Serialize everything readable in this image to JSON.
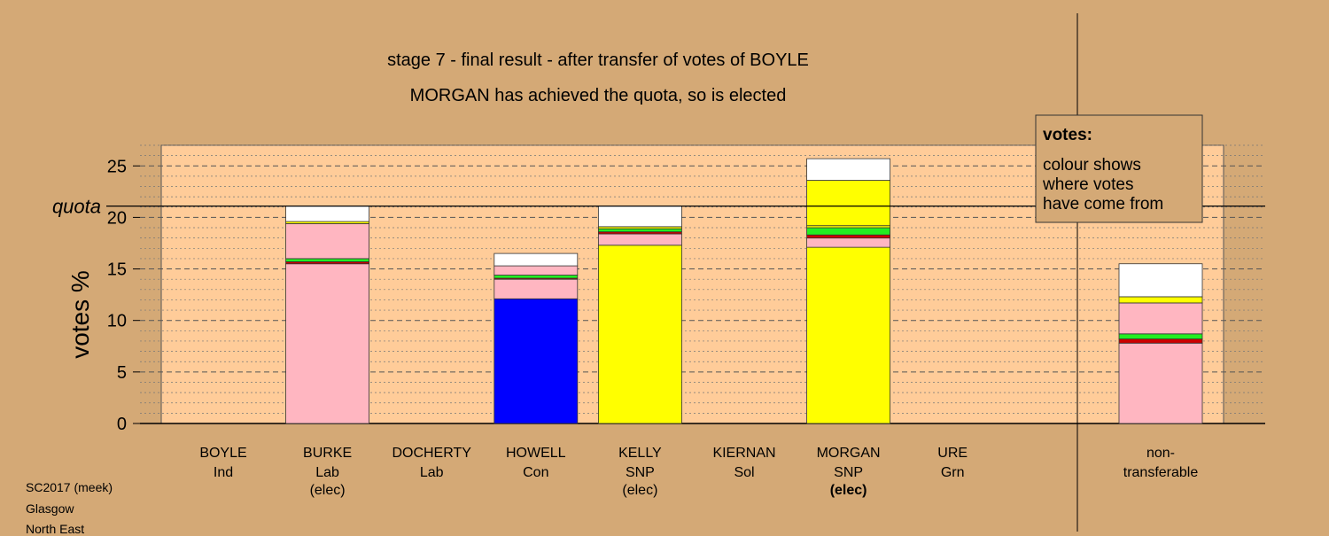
{
  "chart_data": {
    "type": "bar",
    "stacked": true,
    "title": "stage 7 - final result - after transfer of votes of BOYLE",
    "subtitle": "MORGAN has achieved the quota, so is elected",
    "ylabel": "votes %",
    "ylim": [
      0,
      27
    ],
    "yticks": [
      "0",
      "5",
      "10",
      "15",
      "20",
      "25"
    ],
    "grid": true,
    "quota": {
      "value": 21.1,
      "label": "quota"
    },
    "legend": {
      "title": "votes:",
      "lines": [
        "colour shows",
        "where votes",
        "have come from"
      ]
    },
    "colors": {
      "Con": "#0000ff",
      "SNP": "#ffff00",
      "Lab": "#ffb6c1",
      "Sol": "#cc0000",
      "Grn": "#22ee22",
      "Ind": "#ffffff",
      "plot_bg": "#ffcc99",
      "page_bg": "#d4a976"
    },
    "candidates": [
      {
        "name": "BOYLE",
        "party": "Ind",
        "status": "",
        "bold": false,
        "segments": []
      },
      {
        "name": "BURKE",
        "party": "Lab",
        "status": "(elec)",
        "bold": false,
        "segments": [
          {
            "from": "Lab",
            "value": 15.5
          },
          {
            "from": "Sol",
            "value": 0.2
          },
          {
            "from": "Grn",
            "value": 0.3
          },
          {
            "from": "Lab",
            "value": 3.4
          },
          {
            "from": "SNP",
            "value": 0.2
          },
          {
            "from": "Ind",
            "value": 1.5
          }
        ]
      },
      {
        "name": "DOCHERTY",
        "party": "Lab",
        "status": "",
        "bold": false,
        "segments": []
      },
      {
        "name": "HOWELL",
        "party": "Con",
        "status": "",
        "bold": false,
        "segments": [
          {
            "from": "Con",
            "value": 12.1
          },
          {
            "from": "Lab",
            "value": 1.9
          },
          {
            "from": "Sol",
            "value": 0.1
          },
          {
            "from": "Grn",
            "value": 0.3
          },
          {
            "from": "Lab",
            "value": 0.9
          },
          {
            "from": "Ind",
            "value": 1.2
          }
        ]
      },
      {
        "name": "KELLY",
        "party": "SNP",
        "status": "(elec)",
        "bold": false,
        "segments": [
          {
            "from": "SNP",
            "value": 17.3
          },
          {
            "from": "Lab",
            "value": 1.1
          },
          {
            "from": "Sol",
            "value": 0.2
          },
          {
            "from": "Grn",
            "value": 0.3
          },
          {
            "from": "SNP",
            "value": 0.2
          },
          {
            "from": "Ind",
            "value": 2.0
          }
        ]
      },
      {
        "name": "KIERNAN",
        "party": "Sol",
        "status": "",
        "bold": false,
        "segments": []
      },
      {
        "name": "MORGAN",
        "party": "SNP",
        "status": "(elec)",
        "bold": true,
        "segments": [
          {
            "from": "SNP",
            "value": 17.1
          },
          {
            "from": "Lab",
            "value": 0.9
          },
          {
            "from": "Sol",
            "value": 0.3
          },
          {
            "from": "Grn",
            "value": 0.7
          },
          {
            "from": "SNP",
            "value": 0.2
          },
          {
            "from": "SNP",
            "value": 4.4
          },
          {
            "from": "Ind",
            "value": 2.1
          }
        ]
      },
      {
        "name": "URE",
        "party": "Grn",
        "status": "",
        "bold": false,
        "segments": []
      }
    ],
    "nontransferable": {
      "label_lines": [
        "non-",
        "transferable"
      ],
      "segments": [
        {
          "from": "Lab",
          "value": 7.8
        },
        {
          "from": "Sol",
          "value": 0.4
        },
        {
          "from": "Grn",
          "value": 0.5
        },
        {
          "from": "Lab",
          "value": 3.0
        },
        {
          "from": "SNP",
          "value": 0.6
        },
        {
          "from": "Ind",
          "value": 3.2
        }
      ]
    }
  },
  "footer": {
    "lines": [
      "SC2017 (meek)",
      "Glasgow",
      "North East"
    ]
  }
}
